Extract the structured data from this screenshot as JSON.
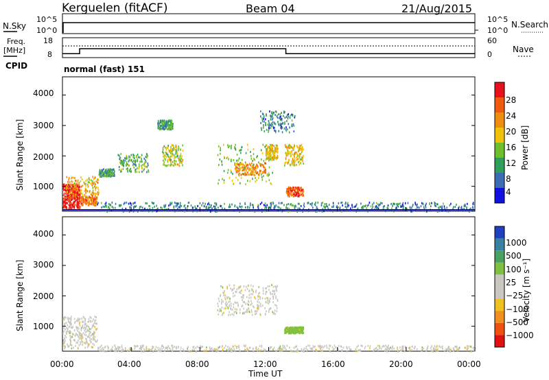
{
  "header": {
    "station": "Kerguelen (fitACF)",
    "beam": "Beam 04",
    "date": "21/Aug/2015"
  },
  "top_panel": {
    "left_label": "N.Sky",
    "left_ticks": [
      "10^5",
      "10^0"
    ],
    "right_ticks": [
      "10^5",
      "10^0"
    ],
    "right_label": "N.Search"
  },
  "freq_panel": {
    "label_line1": "Freq.",
    "label_line2": "[MHz]",
    "left_ticks": [
      "18",
      "8"
    ],
    "right_ticks": [
      "60",
      "0"
    ],
    "right_label": "Nave"
  },
  "cpid": {
    "label": "CPID",
    "mode": "normal (fast) 151"
  },
  "xaxis": {
    "tick_labels": [
      "00:00",
      "04:00",
      "08:00",
      "12:00",
      "16:00",
      "20:00",
      "00:00"
    ],
    "title": "Time UT"
  },
  "power_panel": {
    "ylabel": "Slant Range [km]",
    "yticks": [
      "4000",
      "3000",
      "2000",
      "1000"
    ],
    "colorbar_title": "Power [dB]",
    "colorbar_ticks": [
      "28",
      "24",
      "20",
      "16",
      "12",
      "8",
      "4"
    ],
    "colorbar_colors": [
      "#e8101a",
      "#f05a10",
      "#f08c10",
      "#f0c20a",
      "#6fbf2a",
      "#2e9e5a",
      "#3b6cb4",
      "#1010e0"
    ]
  },
  "velocity_panel": {
    "ylabel": "Slant Range [km]",
    "yticks": [
      "4000",
      "3000",
      "2000",
      "1000"
    ],
    "colorbar_title": "Velocity [m s⁻¹]",
    "colorbar_ticks": [
      "1000",
      "500",
      "100",
      "25",
      "−25",
      "−100",
      "−500",
      "−1000"
    ],
    "colorbar_colors": [
      "#2040c0",
      "#3a80a0",
      "#4aa060",
      "#80c040",
      "#c8c8c0",
      "#c8c8c0",
      "#f0c020",
      "#f09020",
      "#f05010",
      "#e01010"
    ]
  },
  "chart_data": {
    "type": "heatmap",
    "title": "Kerguelen (fitACF) Beam 04 21/Aug/2015",
    "xlabel": "Time UT",
    "ylabel": "Slant Range [km]",
    "x_range_hours": [
      0,
      24
    ],
    "y_range_km": [
      180,
      4600
    ],
    "freq_mhz_segments": [
      {
        "t_start": 0.0,
        "t_end": 1.0,
        "freq": 10
      },
      {
        "t_start": 1.0,
        "t_end": 13.0,
        "freq": 12.5
      },
      {
        "t_start": 13.0,
        "t_end": 24.0,
        "freq": 10
      }
    ],
    "power_regions": [
      {
        "t": [
          0.0,
          1.0
        ],
        "range": [
          300,
          1100
        ],
        "power_db": 28
      },
      {
        "t": [
          0.2,
          2.1
        ],
        "range": [
          700,
          1350
        ],
        "power_db": 18
      },
      {
        "t": [
          1.0,
          2.0
        ],
        "range": [
          400,
          700
        ],
        "power_db": 22
      },
      {
        "t": [
          2.1,
          3.0
        ],
        "range": [
          1350,
          1600
        ],
        "power_db": 8
      },
      {
        "t": [
          3.2,
          5.0
        ],
        "range": [
          1500,
          2100
        ],
        "power_db": 10
      },
      {
        "t": [
          5.8,
          7.0
        ],
        "range": [
          1700,
          2400
        ],
        "power_db": 14
      },
      {
        "t": [
          5.5,
          6.4
        ],
        "range": [
          2900,
          3200
        ],
        "power_db": 8
      },
      {
        "t": [
          9.0,
          12.2
        ],
        "range": [
          1100,
          2400
        ],
        "power_db": 12
      },
      {
        "t": [
          10.0,
          11.8
        ],
        "range": [
          1400,
          1800
        ],
        "power_db": 20
      },
      {
        "t": [
          11.8,
          12.5
        ],
        "range": [
          1900,
          2400
        ],
        "power_db": 16
      },
      {
        "t": [
          12.9,
          14.0
        ],
        "range": [
          1700,
          2400
        ],
        "power_db": 16
      },
      {
        "t": [
          13.0,
          14.0
        ],
        "range": [
          700,
          1000
        ],
        "power_db": 24
      },
      {
        "t": [
          11.5,
          13.5
        ],
        "range": [
          2800,
          3500
        ],
        "power_db": 6
      },
      {
        "t": [
          2.0,
          24.0
        ],
        "range": [
          200,
          500
        ],
        "power_db": 6
      }
    ],
    "velocity_regions": [
      {
        "t": [
          0.0,
          2.0
        ],
        "range": [
          300,
          1350
        ],
        "velocity": 0
      },
      {
        "t": [
          9.0,
          12.5
        ],
        "range": [
          1400,
          2400
        ],
        "velocity": 0
      },
      {
        "t": [
          12.9,
          14.0
        ],
        "range": [
          800,
          1000
        ],
        "velocity": 80
      },
      {
        "t": [
          2.0,
          24.0
        ],
        "range": [
          200,
          400
        ],
        "velocity": 0
      }
    ]
  }
}
